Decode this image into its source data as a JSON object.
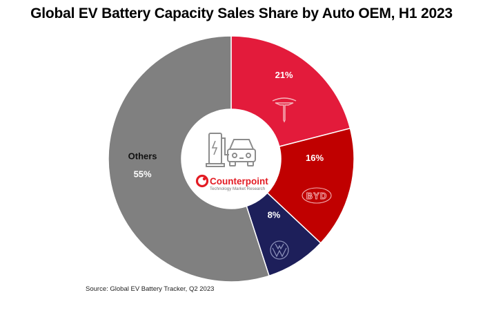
{
  "chart_data": {
    "type": "pie",
    "style": "donut",
    "title": "Global EV Battery Capacity Sales Share by Auto OEM, H1 2023",
    "slices": [
      {
        "label": "Tesla",
        "value": 21,
        "display": "21%",
        "color": "#e31b3b",
        "logo": "tesla-logo"
      },
      {
        "label": "BYD",
        "value": 16,
        "display": "16%",
        "color": "#c00000",
        "logo": "byd-logo"
      },
      {
        "label": "Volkswagen",
        "value": 8,
        "display": "8%",
        "color": "#1d1f5a",
        "logo": "volkswagen-logo"
      },
      {
        "label": "Others",
        "value": 55,
        "display": "55%",
        "color": "#808080"
      }
    ],
    "source": "Source: Global EV Battery Tracker, Q2 2023"
  },
  "center": {
    "brand_name": "Counterpoint",
    "brand_tagline": "Technology Market Research",
    "icon": "ev-charging-car-icon"
  }
}
